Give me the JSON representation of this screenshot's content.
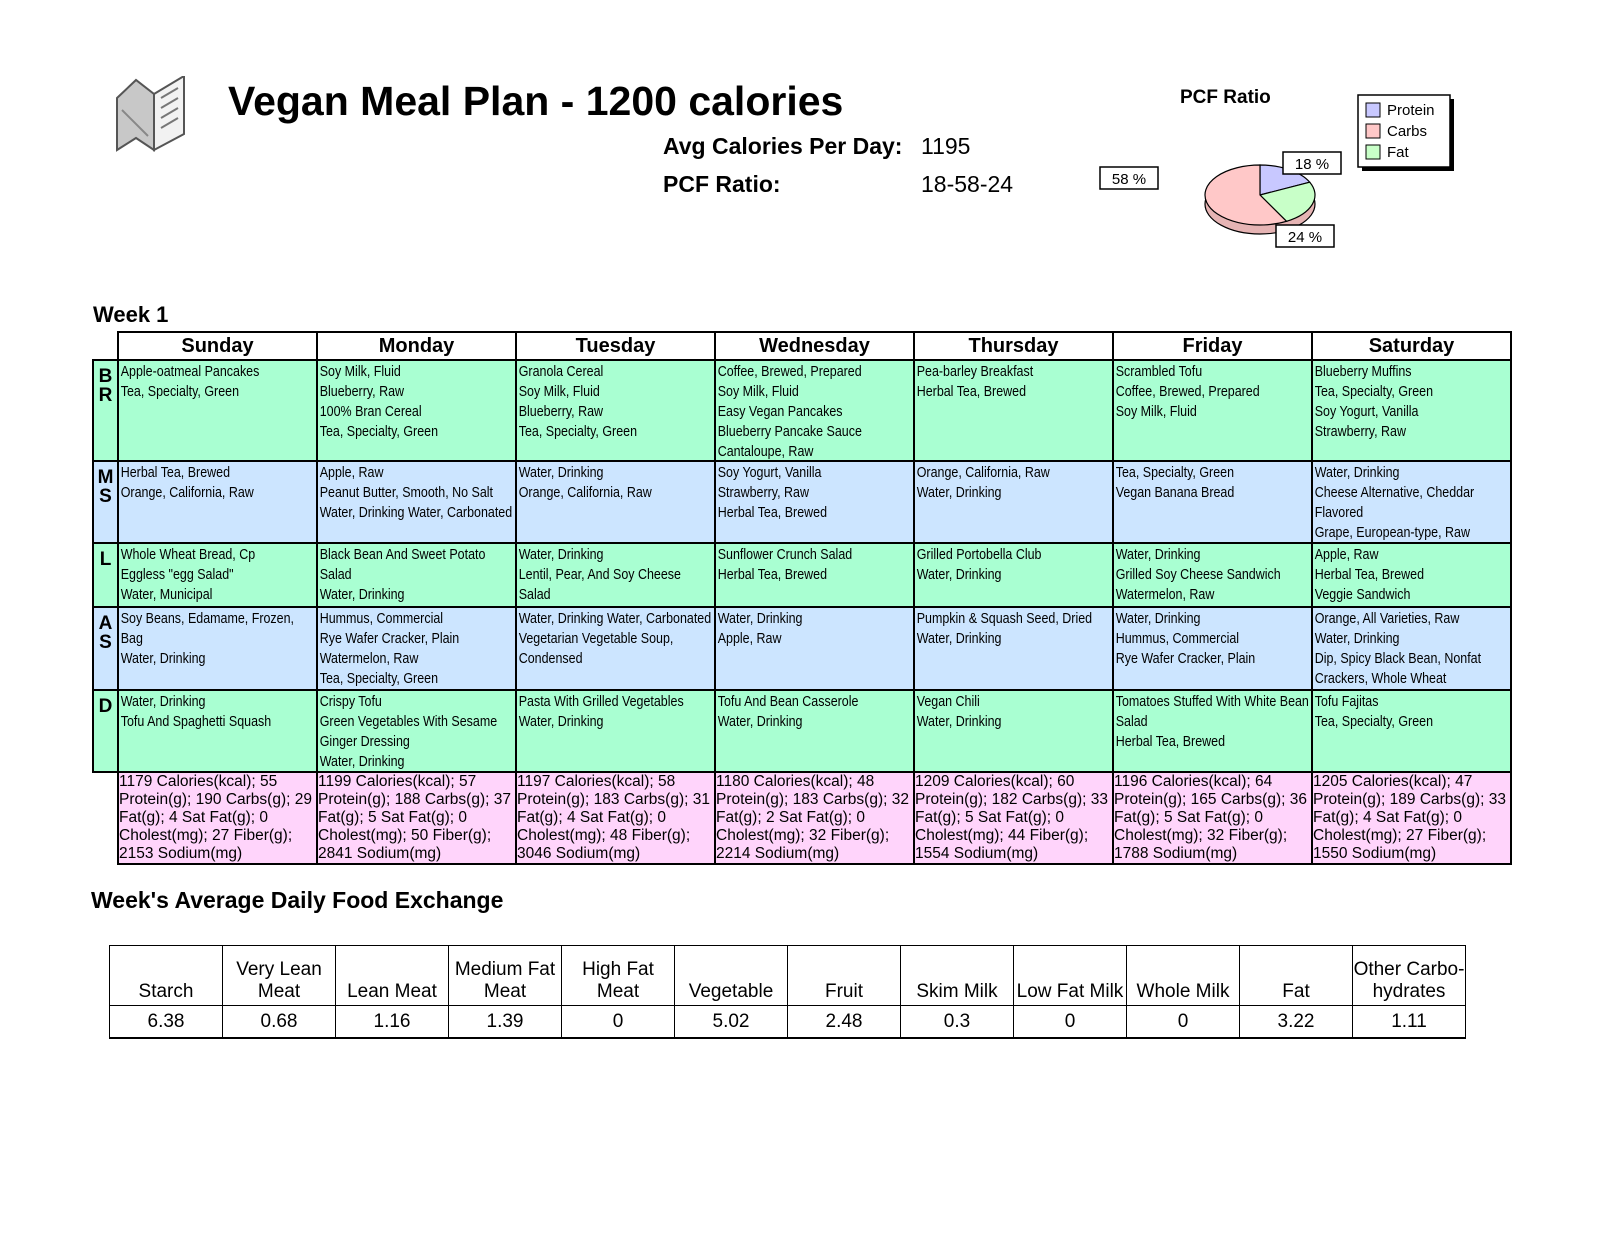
{
  "header": {
    "title": "Vegan Meal Plan - 1200 calories",
    "avg_calories_label": "Avg Calories Per Day:",
    "avg_calories_value": "1195",
    "pcf_label": "PCF Ratio:",
    "pcf_value": "18-58-24"
  },
  "pie": {
    "title": "PCF Ratio",
    "legend": [
      "Protein",
      "Carbs",
      "Fat"
    ],
    "labels": [
      "18 %",
      "58 %",
      "24 %"
    ]
  },
  "chart_data": {
    "type": "pie",
    "title": "PCF Ratio",
    "categories": [
      "Protein",
      "Carbs",
      "Fat"
    ],
    "values": [
      18,
      58,
      24
    ],
    "colors": [
      "#c8c8ff",
      "#ffc8c8",
      "#c8ffc8"
    ],
    "legend_position": "top-right"
  },
  "week": {
    "title": "Week 1",
    "days": [
      "Sunday",
      "Monday",
      "Tuesday",
      "Wednesday",
      "Thursday",
      "Friday",
      "Saturday"
    ],
    "meals": [
      {
        "label": "B R",
        "bg": "#a9ffd2",
        "cells": [
          [
            "Apple-oatmeal Pancakes",
            "Tea, Specialty, Green"
          ],
          [
            "Soy Milk, Fluid",
            "Blueberry, Raw",
            "100% Bran Cereal",
            "Tea, Specialty, Green"
          ],
          [
            "Granola Cereal",
            "Soy Milk, Fluid",
            "Blueberry, Raw",
            "Tea, Specialty, Green"
          ],
          [
            "Coffee, Brewed, Prepared",
            "Soy Milk, Fluid",
            "Easy Vegan Pancakes",
            "Blueberry Pancake Sauce",
            "Cantaloupe, Raw"
          ],
          [
            "Pea-barley Breakfast",
            "Herbal Tea, Brewed"
          ],
          [
            "Scrambled Tofu",
            "Coffee, Brewed, Prepared",
            "Soy Milk, Fluid"
          ],
          [
            "Blueberry Muffins",
            "Tea, Specialty, Green",
            "Soy Yogurt, Vanilla",
            "Strawberry, Raw"
          ]
        ]
      },
      {
        "label": "M S",
        "bg": "#cce5ff",
        "cells": [
          [
            "Herbal Tea, Brewed",
            "Orange, California, Raw"
          ],
          [
            "Apple, Raw",
            "Peanut Butter, Smooth, No Salt",
            "Water, Drinking Water, Carbonated"
          ],
          [
            "Water, Drinking",
            "Orange, California, Raw"
          ],
          [
            "Soy Yogurt, Vanilla",
            "Strawberry, Raw",
            "Herbal Tea, Brewed"
          ],
          [
            "Orange, California, Raw",
            "Water, Drinking"
          ],
          [
            "Tea, Specialty, Green",
            "Vegan Banana Bread"
          ],
          [
            "Water, Drinking",
            "Cheese Alternative, Cheddar Flavored",
            "Grape, European-type, Raw"
          ]
        ]
      },
      {
        "label": "L",
        "bg": "#a9ffd2",
        "cells": [
          [
            "Whole Wheat Bread, Cp",
            "Eggless \"egg Salad\"",
            "Water, Municipal"
          ],
          [
            "Black Bean And Sweet Potato Salad",
            "Water, Drinking"
          ],
          [
            "Water, Drinking",
            "Lentil, Pear, And Soy Cheese Salad"
          ],
          [
            "Sunflower Crunch Salad",
            "Herbal Tea, Brewed"
          ],
          [
            "Grilled Portobella Club",
            "Water, Drinking"
          ],
          [
            "Water, Drinking",
            "Grilled Soy Cheese Sandwich",
            "Watermelon, Raw"
          ],
          [
            "Apple, Raw",
            "Herbal Tea, Brewed",
            "Veggie Sandwich"
          ]
        ]
      },
      {
        "label": "A S",
        "bg": "#cce5ff",
        "cells": [
          [
            "Soy Beans, Edamame, Frozen, Bag",
            "Water, Drinking"
          ],
          [
            "Hummus, Commercial",
            "Rye Wafer Cracker, Plain",
            "Watermelon, Raw",
            "Tea, Specialty, Green"
          ],
          [
            "Water, Drinking Water, Carbonated",
            "Vegetarian Vegetable Soup, Condensed"
          ],
          [
            "Water, Drinking",
            "Apple, Raw"
          ],
          [
            "Pumpkin & Squash Seed, Dried",
            "Water, Drinking"
          ],
          [
            "Water, Drinking",
            "Hummus, Commercial",
            "Rye Wafer Cracker, Plain"
          ],
          [
            "Orange, All Varieties, Raw",
            "Water, Drinking",
            "Dip, Spicy Black Bean, Nonfat",
            "Crackers, Whole Wheat"
          ]
        ]
      },
      {
        "label": "D",
        "bg": "#a9ffd2",
        "cells": [
          [
            "Water, Drinking",
            "Tofu And Spaghetti Squash"
          ],
          [
            "Crispy Tofu",
            "Green Vegetables With Sesame Ginger Dressing",
            "Water, Drinking"
          ],
          [
            "Pasta With Grilled Vegetables",
            "Water, Drinking"
          ],
          [
            "Tofu And Bean Casserole",
            "Water, Drinking"
          ],
          [
            "Vegan Chili",
            "Water, Drinking"
          ],
          [
            "Tomatoes Stuffed With White Bean Salad",
            "Herbal Tea, Brewed"
          ],
          [
            "Tofu Fajitas",
            "Tea, Specialty, Green"
          ]
        ]
      }
    ],
    "totals": [
      "1179 Calories(kcal); 55 Protein(g); 190 Carbs(g); 29 Fat(g); 4 Sat Fat(g); 0 Cholest(mg); 27 Fiber(g); 2153 Sodium(mg)",
      "1199 Calories(kcal); 57 Protein(g); 188 Carbs(g); 37 Fat(g); 5 Sat Fat(g); 0 Cholest(mg); 50 Fiber(g); 2841 Sodium(mg)",
      "1197 Calories(kcal); 58 Protein(g); 183 Carbs(g); 31 Fat(g); 4 Sat Fat(g); 0 Cholest(mg); 48 Fiber(g); 3046 Sodium(mg)",
      "1180 Calories(kcal); 48 Protein(g); 183 Carbs(g); 32 Fat(g); 2 Sat Fat(g); 0 Cholest(mg); 32 Fiber(g); 2214 Sodium(mg)",
      "1209 Calories(kcal); 60 Protein(g); 182 Carbs(g); 33 Fat(g); 5 Sat Fat(g); 0 Cholest(mg); 44 Fiber(g); 1554 Sodium(mg)",
      "1196 Calories(kcal); 64 Protein(g); 165 Carbs(g); 36 Fat(g); 5 Sat Fat(g); 0 Cholest(mg); 32 Fiber(g); 1788 Sodium(mg)",
      "1205 Calories(kcal); 47 Protein(g); 189 Carbs(g); 33 Fat(g); 4 Sat Fat(g); 0 Cholest(mg); 27 Fiber(g); 1550 Sodium(mg)"
    ]
  },
  "exchange": {
    "title": "Week's Average Daily Food Exchange",
    "headers": [
      "Starch",
      "Very Lean Meat",
      "Lean Meat",
      "Medium Fat Meat",
      "High Fat Meat",
      "Vegetable",
      "Fruit",
      "Skim Milk",
      "Low Fat Milk",
      "Whole Milk",
      "Fat",
      "Other Carbo-hydrates"
    ],
    "values": [
      "6.38",
      "0.68",
      "1.16",
      "1.39",
      "0",
      "5.02",
      "2.48",
      "0.3",
      "0",
      "0",
      "3.22",
      "1.11"
    ]
  }
}
